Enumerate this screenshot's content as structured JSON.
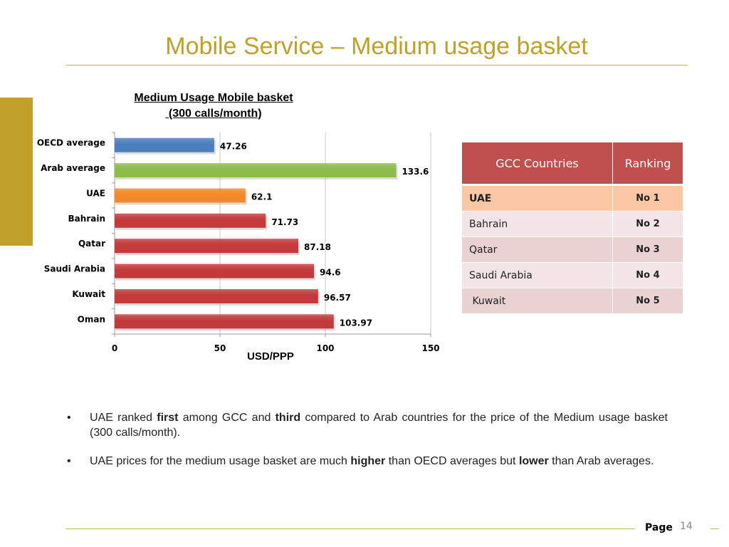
{
  "slide": {
    "title": "Mobile Service – Medium usage basket",
    "page_label": "Page",
    "page_number": "14"
  },
  "chart_data": {
    "type": "bar",
    "orientation": "horizontal",
    "title_line1": "Medium Usage Mobile basket",
    "title_line2": " (300 calls/month)",
    "xlabel": "USD/PPP",
    "categories": [
      "OECD average",
      "Arab average",
      "UAE",
      "Bahrain",
      "Qatar",
      "Saudi Arabia",
      "Kuwait",
      "Oman"
    ],
    "values": [
      47.26,
      133.6,
      62.1,
      71.73,
      87.18,
      94.6,
      96.57,
      103.97
    ],
    "value_labels": [
      "47.26",
      "133.6",
      "62.1",
      "71.73",
      "87.18",
      "94.6",
      "96.57",
      "103.97"
    ],
    "bar_colors": [
      "#4a7ebf",
      "#8cbd4a",
      "#f38a2a",
      "#c4393a",
      "#c4393a",
      "#c4393a",
      "#c4393a",
      "#c4393a"
    ],
    "xlim": [
      0,
      150
    ],
    "xticks": [
      0,
      50,
      100,
      150
    ],
    "xtick_labels": [
      "0",
      "50",
      "100",
      "150"
    ],
    "grid": true
  },
  "ranking_table": {
    "headers": [
      "GCC Countries",
      "Ranking"
    ],
    "header_color": "#c0504d",
    "rows": [
      {
        "country": "UAE",
        "rank": "No 1"
      },
      {
        "country": "Bahrain",
        "rank": "No 2"
      },
      {
        "country": "Qatar",
        "rank": "No 3"
      },
      {
        "country": "Saudi Arabia",
        "rank": "No 4"
      },
      {
        "country": " Kuwait",
        "rank": "No 5"
      }
    ]
  },
  "bullets": [
    {
      "t1": "UAE ranked ",
      "b1": "first",
      "t2": " among GCC and ",
      "b2": "third",
      "t3": " compared to Arab countries for the price of the Medium usage basket (300 calls/month)."
    },
    {
      "t1": "UAE prices for the medium usage basket are much ",
      "b1": "higher",
      "t2": " than OECD averages but ",
      "b2": "lower",
      "t3": " than Arab averages."
    }
  ],
  "bullet_symbol": "•"
}
